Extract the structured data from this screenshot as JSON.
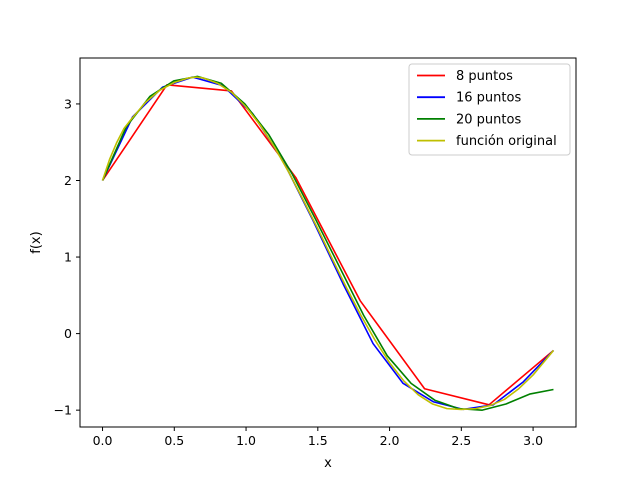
{
  "chart_data": {
    "type": "line",
    "title": "",
    "xlabel": "x",
    "ylabel": "f(x)",
    "xlim": [
      -0.157,
      3.299
    ],
    "ylim": [
      -1.22,
      3.6
    ],
    "xticks": [
      "0.0",
      "0.5",
      "1.0",
      "1.5",
      "2.0",
      "2.5",
      "3.0"
    ],
    "yticks": [
      "−1",
      "0",
      "1",
      "2",
      "3"
    ],
    "grid": false,
    "legend_position": "top-right",
    "series": [
      {
        "name": "8 puntos",
        "color": "#ff0000",
        "x": [
          0.0,
          0.449,
          0.898,
          1.346,
          1.795,
          2.244,
          2.693,
          3.142
        ],
        "y": [
          2.0,
          3.25,
          3.17,
          2.04,
          0.43,
          -0.72,
          -0.93,
          -0.22
        ]
      },
      {
        "name": "16 puntos",
        "color": "#0000ff",
        "x": [
          0.0,
          0.209,
          0.419,
          0.628,
          0.838,
          1.047,
          1.257,
          1.466,
          1.676,
          1.885,
          2.094,
          2.304,
          2.513,
          2.723,
          2.932,
          3.142
        ],
        "y": [
          2.0,
          2.83,
          3.22,
          3.35,
          3.24,
          2.87,
          2.26,
          1.48,
          0.65,
          -0.13,
          -0.65,
          -0.89,
          -0.99,
          -0.93,
          -0.63,
          -0.22
        ]
      },
      {
        "name": "20 puntos",
        "color": "#008000",
        "x": [
          0.0,
          0.165,
          0.331,
          0.496,
          0.661,
          0.827,
          0.992,
          1.158,
          1.323,
          1.488,
          1.654,
          1.819,
          1.984,
          2.15,
          2.315,
          2.48,
          2.646,
          2.811,
          2.976,
          3.142
        ],
        "y": [
          2.0,
          2.7,
          3.1,
          3.3,
          3.36,
          3.27,
          3.0,
          2.6,
          2.08,
          1.48,
          0.86,
          0.24,
          -0.29,
          -0.65,
          -0.87,
          -0.98,
          -1.0,
          -0.92,
          -0.79,
          -0.73
        ]
      },
      {
        "name": "función original",
        "color": "#bfbf00",
        "x": [
          0.0,
          0.05,
          0.1,
          0.15,
          0.2,
          0.3,
          0.4,
          0.5,
          0.6,
          0.65,
          0.7,
          0.8,
          0.9,
          1.0,
          1.1,
          1.2,
          1.3,
          1.4,
          1.5,
          1.6,
          1.7,
          1.8,
          1.9,
          2.0,
          2.1,
          2.2,
          2.3,
          2.4,
          2.5,
          2.6,
          2.7,
          2.8,
          2.9,
          3.0,
          3.142
        ],
        "y": [
          2.0,
          2.28,
          2.5,
          2.68,
          2.8,
          3.02,
          3.18,
          3.28,
          3.34,
          3.35,
          3.34,
          3.27,
          3.15,
          2.96,
          2.72,
          2.43,
          2.1,
          1.74,
          1.37,
          0.98,
          0.6,
          0.24,
          -0.09,
          -0.38,
          -0.62,
          -0.8,
          -0.92,
          -0.98,
          -0.99,
          -0.98,
          -0.94,
          -0.86,
          -0.72,
          -0.54,
          -0.22
        ]
      }
    ]
  }
}
